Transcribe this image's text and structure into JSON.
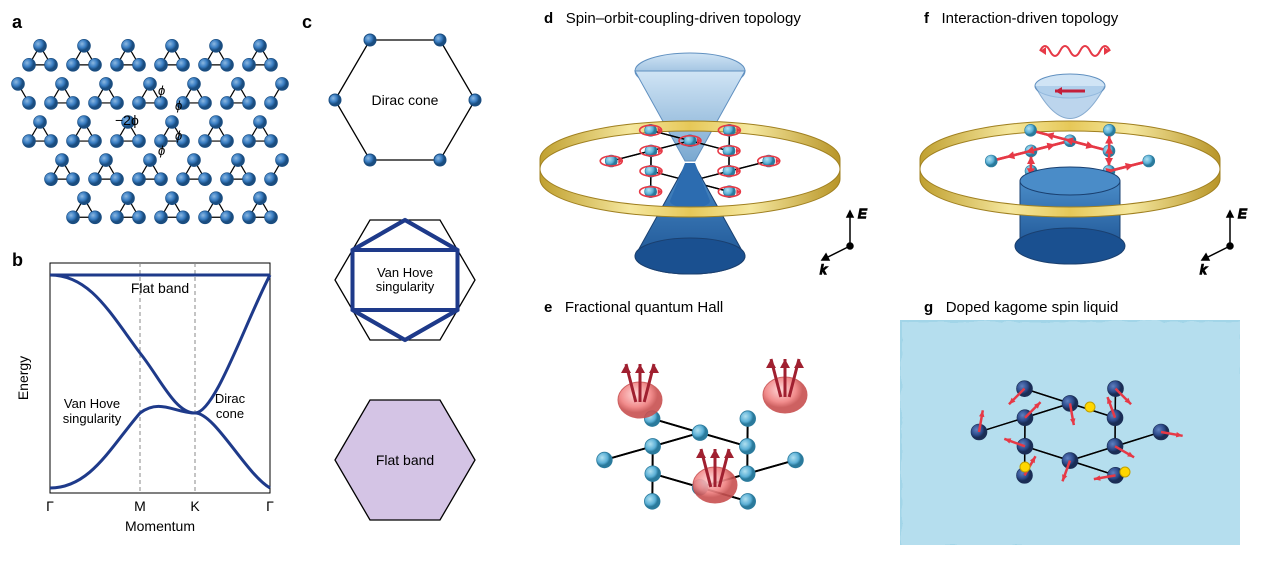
{
  "colors": {
    "atom_fill": "#3b7fc4",
    "atom_stroke": "#1a4d80",
    "atom2_fill": "#5cb0d6",
    "bond": "#000000",
    "band_line": "#1e3a8a",
    "grid_dash": "#888888",
    "flatband_fill": "#d4c4e5",
    "cone_top": "#a6c8e8",
    "cone_bottom": "#2c6cb0",
    "ring": "#d4af37",
    "ring_shine": "#f0e68c",
    "arrow_red": "#e63946",
    "spin_arrow": "#c41e3a",
    "blob_pink": "#f4a6a6",
    "blob_pink_stroke": "#d46a6a",
    "liquid_bg": "#a2d5e8",
    "liquid_tex": "#7fc4dd",
    "yellow_dot": "#ffd700",
    "navy_atom": "#2c4a8a",
    "text": "#222222"
  },
  "panels": {
    "a": {
      "label": "a",
      "phi": "ϕ",
      "neg2phi": "−2ϕ"
    },
    "b": {
      "label": "b",
      "xlabel": "Momentum",
      "ylabel": "Energy",
      "ticks": [
        "Γ",
        "M",
        "K",
        "Γ"
      ],
      "flat": "Flat band",
      "vhs": "Van Hove\nsingularity",
      "dirac": "Dirac\ncone"
    },
    "c": {
      "label": "c",
      "dirac": "Dirac cone",
      "vhs": "Van Hove\nsingularity",
      "flat": "Flat band"
    },
    "d": {
      "label": "d",
      "title": "Spin–orbit-coupling-driven topology",
      "axes": {
        "x": "k",
        "y": "E"
      }
    },
    "e": {
      "label": "e",
      "title": "Fractional quantum Hall"
    },
    "f": {
      "label": "f",
      "title": "Interaction-driven topology",
      "axes": {
        "x": "k",
        "y": "E"
      }
    },
    "g": {
      "label": "g",
      "title": "Doped kagome spin liquid"
    }
  },
  "styling": {
    "atom_radius": 6,
    "atom_radius_small": 5,
    "bond_width": 1.2,
    "band_width": 3,
    "hex_width": 1.3,
    "arrow_width": 2
  }
}
